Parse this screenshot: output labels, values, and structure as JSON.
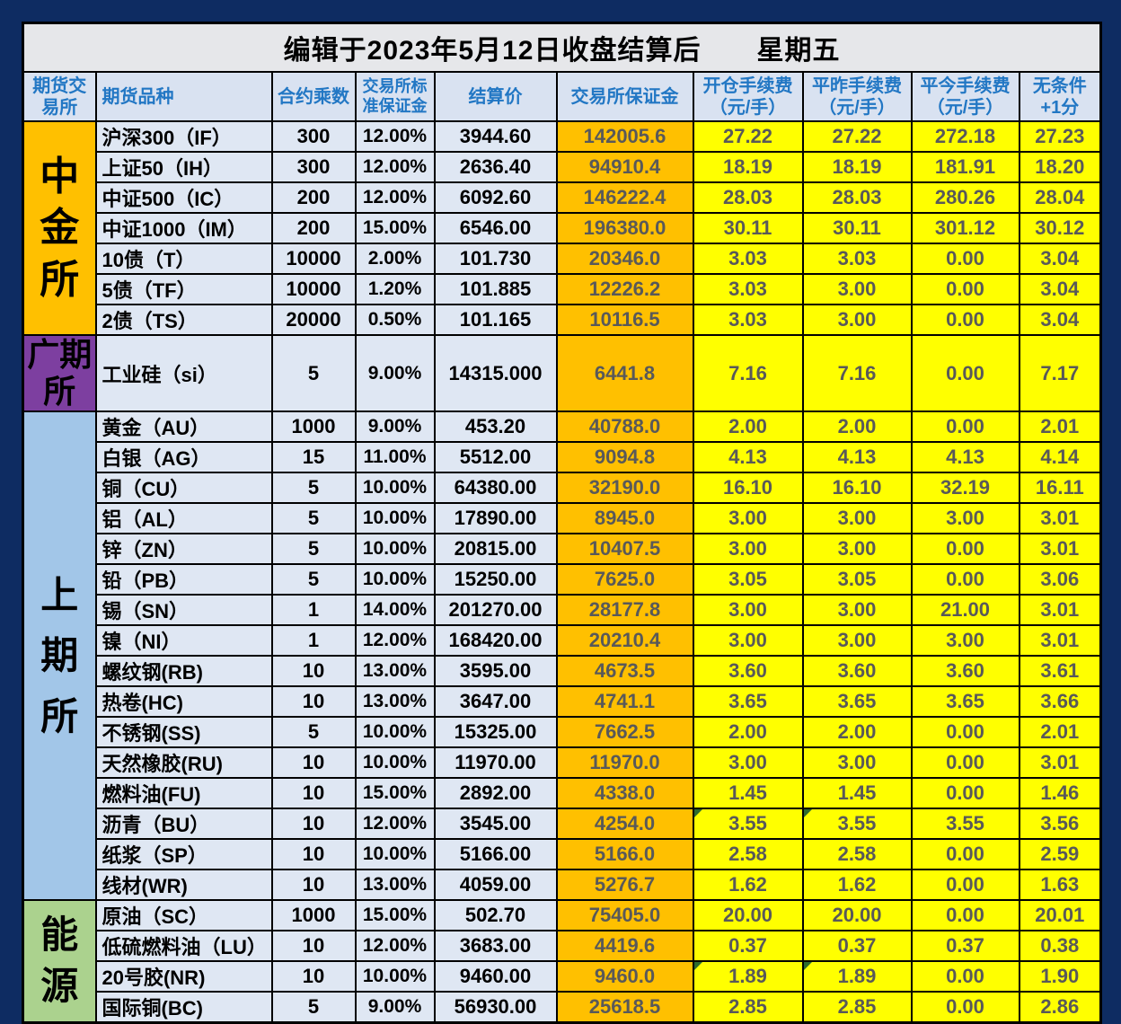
{
  "title": "编辑于2023年5月12日收盘结算后　　星期五",
  "columns": {
    "exchange": "期货交\n易所",
    "product": "期货品种",
    "multiplier": "合约乘数",
    "margin_rate": "交易所标\n准保证金",
    "settle": "结算价",
    "exchange_margin": "交易所保证金",
    "open_fee": "开仓手续费\n（元/手）",
    "close_yesterday_fee": "平昨手续费\n（元/手）",
    "close_today_fee": "平今手续费\n（元/手）",
    "plus_one": "无条件\n+1分"
  },
  "colors": {
    "page_background": "#0e2c62",
    "title_background": "#e6e7ea",
    "header_background": "#d9e2f1",
    "header_text": "#2277c4",
    "cell_light_blue": "#dfe7f3",
    "margin_column_orange": "#ffc000",
    "fee_column_yellow": "#ffff00",
    "fee_text_gray": "#595959",
    "cffex_orange": "#ffc000",
    "gfex_purple": "#7d3fa0",
    "shfe_blue": "#a2c6e8",
    "ine_green": "#abd28e",
    "comment_triangle_green": "#2e6b2e",
    "grid_border": "#000000"
  },
  "sections": [
    {
      "name": "中金所",
      "class": "cffex",
      "rows": [
        {
          "product": "沪深300（IF）",
          "multiplier": "300",
          "margin_rate": "12.00%",
          "settle": "3944.60",
          "exchange_margin": "142005.6",
          "open_fee": "27.22",
          "close_yesterday_fee": "27.22",
          "close_today_fee": "272.18",
          "plus_one": "27.23"
        },
        {
          "product": "上证50（IH）",
          "multiplier": "300",
          "margin_rate": "12.00%",
          "settle": "2636.40",
          "exchange_margin": "94910.4",
          "open_fee": "18.19",
          "close_yesterday_fee": "18.19",
          "close_today_fee": "181.91",
          "plus_one": "18.20"
        },
        {
          "product": "中证500（IC）",
          "multiplier": "200",
          "margin_rate": "12.00%",
          "settle": "6092.60",
          "exchange_margin": "146222.4",
          "open_fee": "28.03",
          "close_yesterday_fee": "28.03",
          "close_today_fee": "280.26",
          "plus_one": "28.04"
        },
        {
          "product": "中证1000（IM）",
          "multiplier": "200",
          "margin_rate": "15.00%",
          "settle": "6546.00",
          "exchange_margin": "196380.0",
          "open_fee": "30.11",
          "close_yesterday_fee": "30.11",
          "close_today_fee": "301.12",
          "plus_one": "30.12"
        },
        {
          "product": "10债（T）",
          "multiplier": "10000",
          "margin_rate": "2.00%",
          "settle": "101.730",
          "exchange_margin": "20346.0",
          "open_fee": "3.03",
          "close_yesterday_fee": "3.03",
          "close_today_fee": "0.00",
          "plus_one": "3.04"
        },
        {
          "product": "5债（TF）",
          "multiplier": "10000",
          "margin_rate": "1.20%",
          "settle": "101.885",
          "exchange_margin": "12226.2",
          "open_fee": "3.03",
          "close_yesterday_fee": "3.00",
          "close_today_fee": "0.00",
          "plus_one": "3.04"
        },
        {
          "product": "2债（TS）",
          "multiplier": "20000",
          "margin_rate": "0.50%",
          "settle": "101.165",
          "exchange_margin": "10116.5",
          "open_fee": "3.03",
          "close_yesterday_fee": "3.00",
          "close_today_fee": "0.00",
          "plus_one": "3.04"
        }
      ]
    },
    {
      "name": "广期所",
      "class": "gfex",
      "tall": true,
      "rows": [
        {
          "product": "工业硅（si）",
          "multiplier": "5",
          "margin_rate": "9.00%",
          "settle": "14315.000",
          "exchange_margin": "6441.8",
          "open_fee": "7.16",
          "close_yesterday_fee": "7.16",
          "close_today_fee": "0.00",
          "plus_one": "7.17"
        }
      ]
    },
    {
      "name": "上期所",
      "class": "shfe",
      "rows": [
        {
          "product": "黄金（AU）",
          "multiplier": "1000",
          "margin_rate": "9.00%",
          "settle": "453.20",
          "exchange_margin": "40788.0",
          "open_fee": "2.00",
          "close_yesterday_fee": "2.00",
          "close_today_fee": "0.00",
          "plus_one": "2.01"
        },
        {
          "product": "白银（AG）",
          "multiplier": "15",
          "margin_rate": "11.00%",
          "settle": "5512.00",
          "exchange_margin": "9094.8",
          "open_fee": "4.13",
          "close_yesterday_fee": "4.13",
          "close_today_fee": "4.13",
          "plus_one": "4.14"
        },
        {
          "product": "铜（CU）",
          "multiplier": "5",
          "margin_rate": "10.00%",
          "settle": "64380.00",
          "exchange_margin": "32190.0",
          "open_fee": "16.10",
          "close_yesterday_fee": "16.10",
          "close_today_fee": "32.19",
          "plus_one": "16.11"
        },
        {
          "product": "铝（AL）",
          "multiplier": "5",
          "margin_rate": "10.00%",
          "settle": "17890.00",
          "exchange_margin": "8945.0",
          "open_fee": "3.00",
          "close_yesterday_fee": "3.00",
          "close_today_fee": "3.00",
          "plus_one": "3.01"
        },
        {
          "product": "锌（ZN）",
          "multiplier": "5",
          "margin_rate": "10.00%",
          "settle": "20815.00",
          "exchange_margin": "10407.5",
          "open_fee": "3.00",
          "close_yesterday_fee": "3.00",
          "close_today_fee": "0.00",
          "plus_one": "3.01"
        },
        {
          "product": "铅（PB）",
          "multiplier": "5",
          "margin_rate": "10.00%",
          "settle": "15250.00",
          "exchange_margin": "7625.0",
          "open_fee": "3.05",
          "close_yesterday_fee": "3.05",
          "close_today_fee": "0.00",
          "plus_one": "3.06"
        },
        {
          "product": "锡（SN）",
          "multiplier": "1",
          "margin_rate": "14.00%",
          "settle": "201270.00",
          "exchange_margin": "28177.8",
          "open_fee": "3.00",
          "close_yesterday_fee": "3.00",
          "close_today_fee": "21.00",
          "plus_one": "3.01"
        },
        {
          "product": "镍（NI）",
          "multiplier": "1",
          "margin_rate": "12.00%",
          "settle": "168420.00",
          "exchange_margin": "20210.4",
          "open_fee": "3.00",
          "close_yesterday_fee": "3.00",
          "close_today_fee": "3.00",
          "plus_one": "3.01"
        },
        {
          "product": "螺纹钢(RB)",
          "multiplier": "10",
          "margin_rate": "13.00%",
          "settle": "3595.00",
          "exchange_margin": "4673.5",
          "open_fee": "3.60",
          "close_yesterday_fee": "3.60",
          "close_today_fee": "3.60",
          "plus_one": "3.61"
        },
        {
          "product": "热卷(HC)",
          "multiplier": "10",
          "margin_rate": "13.00%",
          "settle": "3647.00",
          "exchange_margin": "4741.1",
          "open_fee": "3.65",
          "close_yesterday_fee": "3.65",
          "close_today_fee": "3.65",
          "plus_one": "3.66"
        },
        {
          "product": "不锈钢(SS)",
          "multiplier": "5",
          "margin_rate": "10.00%",
          "settle": "15325.00",
          "exchange_margin": "7662.5",
          "open_fee": "2.00",
          "close_yesterday_fee": "2.00",
          "close_today_fee": "0.00",
          "plus_one": "2.01"
        },
        {
          "product": "天然橡胶(RU)",
          "multiplier": "10",
          "margin_rate": "10.00%",
          "settle": "11970.00",
          "exchange_margin": "11970.0",
          "open_fee": "3.00",
          "close_yesterday_fee": "3.00",
          "close_today_fee": "0.00",
          "plus_one": "3.01"
        },
        {
          "product": "燃料油(FU)",
          "multiplier": "10",
          "margin_rate": "15.00%",
          "settle": "2892.00",
          "exchange_margin": "4338.0",
          "open_fee": "1.45",
          "close_yesterday_fee": "1.45",
          "close_today_fee": "0.00",
          "plus_one": "1.46"
        },
        {
          "product": "沥青（BU）",
          "multiplier": "10",
          "margin_rate": "12.00%",
          "settle": "3545.00",
          "exchange_margin": "4254.0",
          "open_fee": "3.55",
          "close_yesterday_fee": "3.55",
          "close_today_fee": "3.55",
          "plus_one": "3.56",
          "note_cells": [
            "open_fee",
            "close_yesterday_fee"
          ]
        },
        {
          "product": "纸浆（SP）",
          "multiplier": "10",
          "margin_rate": "10.00%",
          "settle": "5166.00",
          "exchange_margin": "5166.0",
          "open_fee": "2.58",
          "close_yesterday_fee": "2.58",
          "close_today_fee": "0.00",
          "plus_one": "2.59"
        },
        {
          "product": "线材(WR)",
          "multiplier": "10",
          "margin_rate": "13.00%",
          "settle": "4059.00",
          "exchange_margin": "5276.7",
          "open_fee": "1.62",
          "close_yesterday_fee": "1.62",
          "close_today_fee": "0.00",
          "plus_one": "1.63"
        }
      ]
    },
    {
      "name": "能源",
      "class": "ine",
      "rows": [
        {
          "product": "原油（SC）",
          "multiplier": "1000",
          "margin_rate": "15.00%",
          "settle": "502.70",
          "exchange_margin": "75405.0",
          "open_fee": "20.00",
          "close_yesterday_fee": "20.00",
          "close_today_fee": "0.00",
          "plus_one": "20.01"
        },
        {
          "product": "低硫燃料油（LU）",
          "multiplier": "10",
          "margin_rate": "12.00%",
          "settle": "3683.00",
          "exchange_margin": "4419.6",
          "open_fee": "0.37",
          "close_yesterday_fee": "0.37",
          "close_today_fee": "0.37",
          "plus_one": "0.38"
        },
        {
          "product": "20号胶(NR)",
          "multiplier": "10",
          "margin_rate": "10.00%",
          "settle": "9460.00",
          "exchange_margin": "9460.0",
          "open_fee": "1.89",
          "close_yesterday_fee": "1.89",
          "close_today_fee": "0.00",
          "plus_one": "1.90",
          "note_cells": [
            "open_fee",
            "close_yesterday_fee"
          ]
        },
        {
          "product": "国际铜(BC)",
          "multiplier": "5",
          "margin_rate": "9.00%",
          "settle": "56930.00",
          "exchange_margin": "25618.5",
          "open_fee": "2.85",
          "close_yesterday_fee": "2.85",
          "close_today_fee": "0.00",
          "plus_one": "2.86"
        }
      ]
    }
  ]
}
